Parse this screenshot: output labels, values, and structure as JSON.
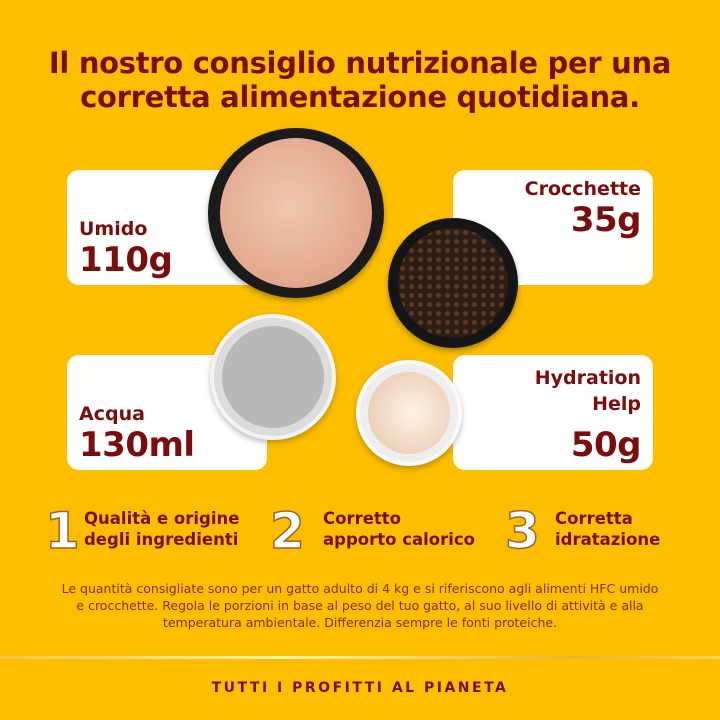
{
  "title": {
    "line1": "Il nostro consiglio nutrizionale per una",
    "line2": "corretta alimentazione quotidiana."
  },
  "cards": [
    {
      "label": "Umido",
      "value": "110g"
    },
    {
      "label": "Crocchette",
      "value": "35g"
    },
    {
      "label": "Acqua",
      "value": "130ml"
    },
    {
      "label_line1": "Hydration",
      "label_line2": "Help",
      "value": "50g"
    }
  ],
  "points": [
    {
      "number": "1",
      "line1": "Qualità e origine",
      "line2": "degli ingredienti"
    },
    {
      "number": "2",
      "line1": "Corretto",
      "line2": "apporto calorico"
    },
    {
      "number": "3",
      "line1": "Corretta",
      "line2": "idratazione"
    }
  ],
  "disclaimer": "Le quantità consigliate sono per un gatto adulto di 4 kg e si riferiscono agli alimenti HFC umido e crocchette. Regola le porzioni in base al peso del tuo gatto, al suo livello di attività e alla temperatura ambientale. Differenzia sempre le fonti proteiche.",
  "footer": "TUTTI I PROFITTI AL PIANETA",
  "colors": {
    "background": "#fdbe00",
    "text": "#7a0d0d",
    "card": "#ffffff"
  }
}
